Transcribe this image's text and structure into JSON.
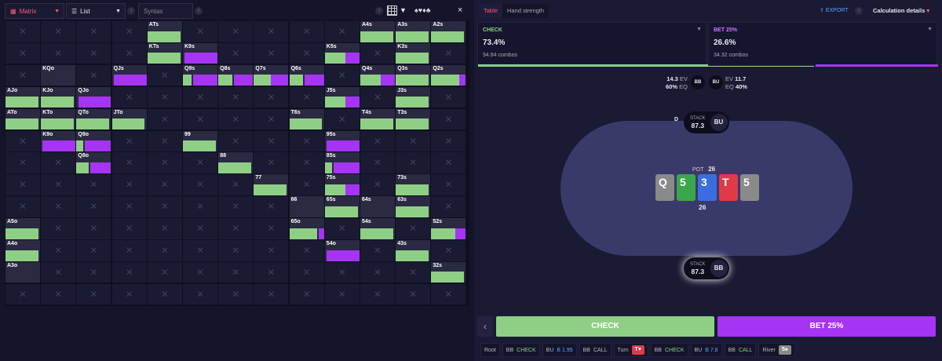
{
  "toolbar": {
    "view_mode": "Matrix",
    "list_mode": "List",
    "syntax_placeholder": "Syntax",
    "info": "i",
    "close": "×"
  },
  "matrix": {
    "cells": [
      {
        "r": 0,
        "c": 4,
        "label": "ATs",
        "g": 0.95,
        "p": 0
      },
      {
        "r": 0,
        "c": 10,
        "label": "A4s",
        "g": 0.95,
        "p": 0
      },
      {
        "r": 0,
        "c": 11,
        "label": "A3s",
        "g": 0.95,
        "p": 0
      },
      {
        "r": 0,
        "c": 12,
        "label": "A2s",
        "g": 0.95,
        "p": 0
      },
      {
        "r": 1,
        "c": 4,
        "label": "KTs",
        "g": 0.95,
        "p": 0
      },
      {
        "r": 1,
        "c": 5,
        "label": "K9s",
        "g": 0,
        "p": 0.95
      },
      {
        "r": 1,
        "c": 9,
        "label": "K5s",
        "g": 0.6,
        "p": 0.4
      },
      {
        "r": 1,
        "c": 11,
        "label": "K3s",
        "g": 0.95,
        "p": 0
      },
      {
        "r": 2,
        "c": 1,
        "label": "KQo",
        "g": 0,
        "p": 0
      },
      {
        "r": 2,
        "c": 3,
        "label": "QJs",
        "g": 0,
        "p": 0.95
      },
      {
        "r": 2,
        "c": 5,
        "label": "Q9s",
        "g": 0.25,
        "p": 0.7
      },
      {
        "r": 2,
        "c": 6,
        "label": "Q8s",
        "g": 0.4,
        "p": 0.55
      },
      {
        "r": 2,
        "c": 7,
        "label": "Q7s",
        "g": 0.5,
        "p": 0.5
      },
      {
        "r": 2,
        "c": 8,
        "label": "Q6s",
        "g": 0.4,
        "p": 0.55
      },
      {
        "r": 2,
        "c": 10,
        "label": "Q4s",
        "g": 0.6,
        "p": 0.4
      },
      {
        "r": 2,
        "c": 11,
        "label": "Q3s",
        "g": 0.95,
        "p": 0
      },
      {
        "r": 2,
        "c": 12,
        "label": "Q2s",
        "g": 0.8,
        "p": 0.2
      },
      {
        "r": 3,
        "c": 0,
        "label": "AJo",
        "g": 0.95,
        "p": 0
      },
      {
        "r": 3,
        "c": 1,
        "label": "KJo",
        "g": 0.95,
        "p": 0
      },
      {
        "r": 3,
        "c": 2,
        "label": "QJo",
        "g": 0,
        "p": 0.95
      },
      {
        "r": 3,
        "c": 9,
        "label": "J5s",
        "g": 0.6,
        "p": 0.4
      },
      {
        "r": 3,
        "c": 11,
        "label": "J3s",
        "g": 0.95,
        "p": 0
      },
      {
        "r": 4,
        "c": 0,
        "label": "ATo",
        "g": 0.95,
        "p": 0
      },
      {
        "r": 4,
        "c": 1,
        "label": "KTo",
        "g": 0.95,
        "p": 0
      },
      {
        "r": 4,
        "c": 2,
        "label": "QTo",
        "g": 0.95,
        "p": 0
      },
      {
        "r": 4,
        "c": 3,
        "label": "JTo",
        "g": 0.95,
        "p": 0
      },
      {
        "r": 4,
        "c": 8,
        "label": "T6s",
        "g": 0.95,
        "p": 0
      },
      {
        "r": 4,
        "c": 10,
        "label": "T4s",
        "g": 0.95,
        "p": 0
      },
      {
        "r": 4,
        "c": 11,
        "label": "T3s",
        "g": 0.95,
        "p": 0
      },
      {
        "r": 5,
        "c": 1,
        "label": "K9o",
        "g": 0,
        "p": 0.95
      },
      {
        "r": 5,
        "c": 2,
        "label": "Q9o",
        "g": 0.2,
        "p": 0.75
      },
      {
        "r": 5,
        "c": 5,
        "label": "99",
        "g": 0.95,
        "p": 0
      },
      {
        "r": 5,
        "c": 9,
        "label": "95s",
        "g": 0,
        "p": 0.95
      },
      {
        "r": 6,
        "c": 2,
        "label": "Q8o",
        "g": 0.35,
        "p": 0.6
      },
      {
        "r": 6,
        "c": 6,
        "label": "88",
        "g": 0.95,
        "p": 0
      },
      {
        "r": 6,
        "c": 9,
        "label": "85s",
        "g": 0.2,
        "p": 0.75
      },
      {
        "r": 7,
        "c": 7,
        "label": "77",
        "g": 0.95,
        "p": 0
      },
      {
        "r": 7,
        "c": 9,
        "label": "75s",
        "g": 0.6,
        "p": 0.4
      },
      {
        "r": 7,
        "c": 11,
        "label": "73s",
        "g": 0.95,
        "p": 0
      },
      {
        "r": 8,
        "c": 8,
        "label": "66",
        "g": 0,
        "p": 0
      },
      {
        "r": 8,
        "c": 9,
        "label": "65s",
        "g": 0.95,
        "p": 0
      },
      {
        "r": 8,
        "c": 10,
        "label": "64s",
        "g": 0,
        "p": 0
      },
      {
        "r": 8,
        "c": 11,
        "label": "63s",
        "g": 0.95,
        "p": 0
      },
      {
        "r": 9,
        "c": 0,
        "label": "A5o",
        "g": 0.95,
        "p": 0
      },
      {
        "r": 9,
        "c": 8,
        "label": "65o",
        "g": 0.8,
        "p": 0.15
      },
      {
        "r": 9,
        "c": 10,
        "label": "54s",
        "g": 0.95,
        "p": 0
      },
      {
        "r": 9,
        "c": 12,
        "label": "52s",
        "g": 0.7,
        "p": 0.3
      },
      {
        "r": 10,
        "c": 0,
        "label": "A4o",
        "g": 0.95,
        "p": 0
      },
      {
        "r": 10,
        "c": 9,
        "label": "54o",
        "g": 0,
        "p": 0.95
      },
      {
        "r": 10,
        "c": 11,
        "label": "43s",
        "g": 0.95,
        "p": 0
      },
      {
        "r": 11,
        "c": 0,
        "label": "A3o",
        "g": 0,
        "p": 0
      },
      {
        "r": 11,
        "c": 12,
        "label": "32s",
        "g": 0.95,
        "p": 0
      }
    ]
  },
  "right": {
    "tabs": [
      "Table",
      "Hand strength"
    ],
    "export": "EXPORT",
    "calc": "Calculation details",
    "check": {
      "title": "CHECK",
      "pct": "73.4%",
      "combos": "94.84 combos"
    },
    "bet": {
      "title": "BET 25%",
      "pct": "26.6%",
      "combos": "34.32 combos"
    },
    "bb_ev": "14.3",
    "bb_eq": "60%",
    "bu_ev": "11.7",
    "bu_eq": "40%",
    "ev_label": "EV",
    "eq_label": "EQ",
    "bb": "BB",
    "bu": "BU",
    "dealer": "D",
    "stack_label": "STACK",
    "bu_stack": "87.3",
    "bb_stack": "87.3",
    "pot_label": "POT",
    "pot": "26",
    "pot_below": "26",
    "cards": [
      {
        "rank": "Q",
        "color": "#8a8a8a"
      },
      {
        "rank": "5",
        "color": "#3aa84a"
      },
      {
        "rank": "3",
        "color": "#3a6ee0"
      },
      {
        "rank": "T",
        "color": "#e03a4a"
      },
      {
        "rank": "5",
        "color": "#8a8a8a"
      }
    ],
    "btn_check": "CHECK",
    "btn_bet": "BET 25%",
    "back": "‹",
    "crumbs": {
      "root": "Root",
      "c1p": "BB",
      "c1a": "CHECK",
      "c2p": "BU",
      "c2a": "B 1.95",
      "c3p": "BB",
      "c3a": "CALL",
      "turn": "Turn",
      "turn_card": "T♥",
      "c4p": "BB",
      "c4a": "CHECK",
      "c5p": "BU",
      "c5a": "B 7.8",
      "c6p": "BB",
      "c6a": "CALL",
      "river": "River",
      "river_card": "5♠"
    },
    "colors": {
      "check": "#8fcf85",
      "bet": "#a634f5"
    }
  }
}
